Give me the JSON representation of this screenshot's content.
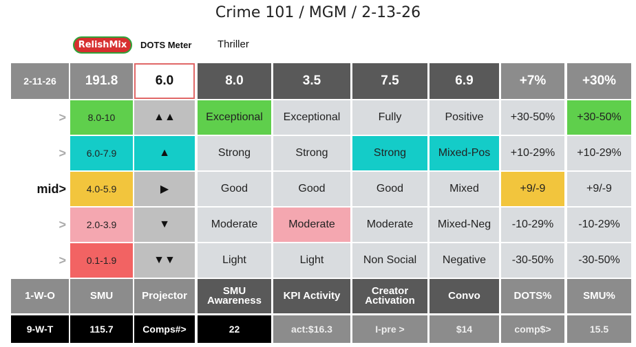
{
  "header": {
    "title": "Crime 101 / MGM / 2-13-26",
    "logo_text": "RelishMix",
    "dots_meter_label": "DOTS Meter",
    "genre": "Thriller"
  },
  "colors": {
    "green": "#5fcf4c",
    "teal": "#14ccc8",
    "yellow": "#f2c53d",
    "pink": "#f4a7b0",
    "red": "#f26363",
    "header_grey": "#8c8c8c",
    "header_dark": "#595959",
    "body_grey": "#d9dcdf"
  },
  "score_row": {
    "date": "2-11-26",
    "smu": "191.8",
    "meter": "6.0",
    "awareness": "8.0",
    "kpi": "3.5",
    "creator": "7.5",
    "convo": "6.9",
    "dots_pct": "+7%",
    "smu_pct": "+30%"
  },
  "rows": [
    {
      "label": ">",
      "scale": "8.0-10",
      "arrow": "▲▲",
      "c1": "Exceptional",
      "c2": "Exceptional",
      "c3": "Fully",
      "c4": "Positive",
      "c5": "+30-50%",
      "c6": "+30-50%"
    },
    {
      "label": ">",
      "scale": "6.0-7.9",
      "arrow": "▲",
      "c1": "Strong",
      "c2": "Strong",
      "c3": "Strong",
      "c4": "Mixed-Pos",
      "c5": "+10-29%",
      "c6": "+10-29%"
    },
    {
      "label": "mid>",
      "scale": "4.0-5.9",
      "arrow": "▶",
      "c1": "Good",
      "c2": "Good",
      "c3": "Good",
      "c4": "Mixed",
      "c5": "+9/-9",
      "c6": "+9/-9"
    },
    {
      "label": ">",
      "scale": "2.0-3.9",
      "arrow": "▼",
      "c1": "Moderate",
      "c2": "Moderate",
      "c3": "Moderate",
      "c4": "Mixed-Neg",
      "c5": "-10-29%",
      "c6": "-10-29%"
    },
    {
      "label": ">",
      "scale": "0.1-1.9",
      "arrow": "▼▼",
      "c1": "Light",
      "c2": "Light",
      "c3": "Non Social",
      "c4": "Negative",
      "c5": "-30-50%",
      "c6": "-30-50%"
    }
  ],
  "footer": {
    "w": "1-W-O",
    "smu": "SMU",
    "projector": "Projector",
    "awareness": "SMU Awareness",
    "kpi": "KPI Activity",
    "creator": "Creator Activation",
    "convo": "Convo",
    "dots_pct": "DOTS%",
    "smu_pct": "SMU%"
  },
  "bottom_row": {
    "w": "9-W-T",
    "smu": "115.7",
    "projector": "Comps#>",
    "awareness": "22",
    "kpi": "act:$16.3",
    "creator": "I-pre >",
    "convo": "$14",
    "dots_pct": "comp$>",
    "smu_pct": "15.5"
  }
}
